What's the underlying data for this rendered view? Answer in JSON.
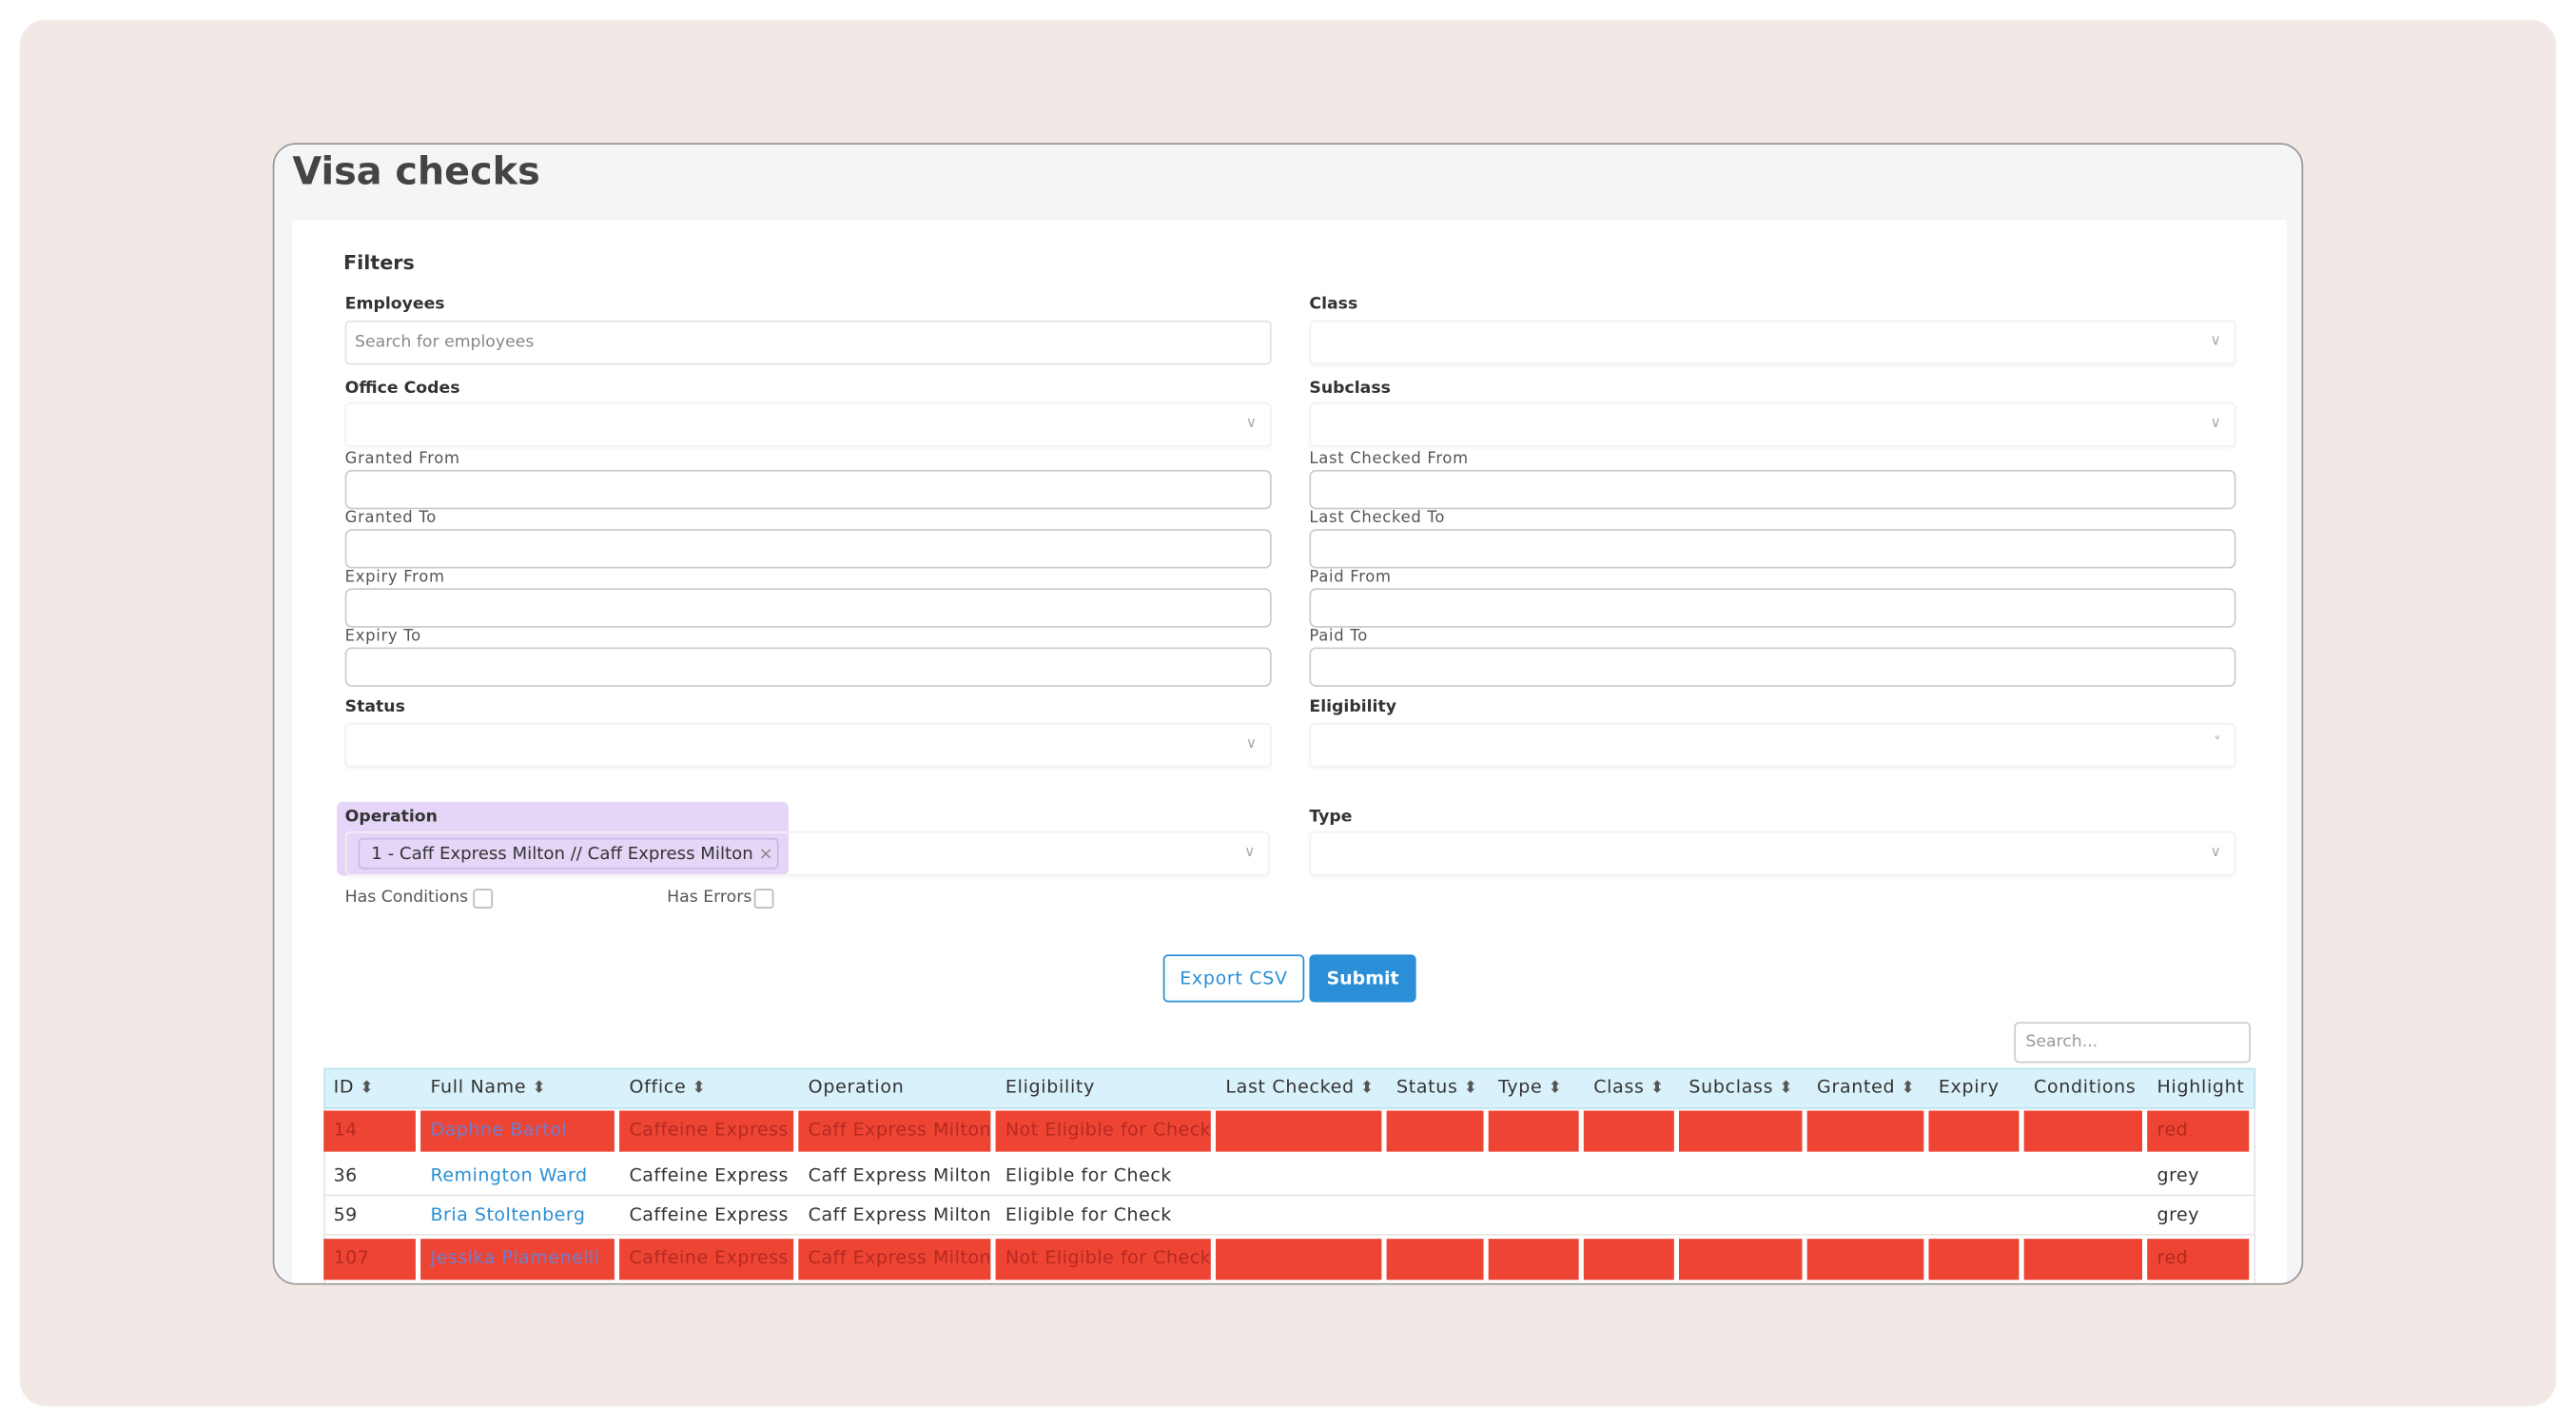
{
  "header": {
    "title": "Visa checks"
  },
  "filters": {
    "title": "Filters",
    "left": [
      {
        "label": "Employees",
        "kind": "search",
        "placeholder": "Search for employees"
      },
      {
        "label": "Office Codes",
        "kind": "select"
      },
      {
        "label": "Granted From",
        "kind": "date"
      },
      {
        "label": "Granted To",
        "kind": "date"
      },
      {
        "label": "Expiry From",
        "kind": "date"
      },
      {
        "label": "Expiry To",
        "kind": "date"
      },
      {
        "label": "Status",
        "kind": "select"
      }
    ],
    "right": [
      {
        "label": "Class",
        "kind": "select"
      },
      {
        "label": "Subclass",
        "kind": "select"
      },
      {
        "label": "Last Checked From",
        "kind": "date"
      },
      {
        "label": "Last Checked To",
        "kind": "date"
      },
      {
        "label": "Paid From",
        "kind": "date"
      },
      {
        "label": "Paid To",
        "kind": "date"
      },
      {
        "label": "Eligibility",
        "kind": "select"
      }
    ],
    "operation": {
      "label": "Operation",
      "chip": "1 - Caff Express Milton // Caff Express Milton"
    },
    "type": {
      "label": "Type"
    },
    "checkboxes": [
      "Has Conditions",
      "Has Errors"
    ]
  },
  "buttons": {
    "export": "Export CSV",
    "submit": "Submit"
  },
  "search": {
    "placeholder": "Search..."
  },
  "table": {
    "columns": [
      {
        "label": "ID",
        "sortable": true
      },
      {
        "label": "Full Name",
        "sortable": true
      },
      {
        "label": "Office",
        "sortable": true
      },
      {
        "label": "Operation",
        "sortable": false
      },
      {
        "label": "Eligibility",
        "sortable": false
      },
      {
        "label": "Last Checked",
        "sortable": true
      },
      {
        "label": "Status",
        "sortable": true
      },
      {
        "label": "Type",
        "sortable": true
      },
      {
        "label": "Class",
        "sortable": true
      },
      {
        "label": "Subclass",
        "sortable": true
      },
      {
        "label": "Granted",
        "sortable": true
      },
      {
        "label": "Expiry",
        "sortable": false
      },
      {
        "label": "Conditions",
        "sortable": false
      },
      {
        "label": "Highlight",
        "sortable": false
      }
    ],
    "rows": [
      [
        "14",
        "Daphne Bartol",
        "Caffeine Express",
        "Caff Express Milton",
        "Not Eligible for Check",
        null,
        null,
        null,
        null,
        null,
        null,
        null,
        null,
        "red"
      ],
      [
        "36",
        "Remington Ward",
        "Caffeine Express",
        "Caff Express Milton",
        "Eligible for Check",
        null,
        null,
        null,
        null,
        null,
        null,
        null,
        null,
        "grey"
      ],
      [
        "59",
        "Bria Stoltenberg",
        "Caffeine Express",
        "Caff Express Milton",
        "Eligible for Check",
        null,
        null,
        null,
        null,
        null,
        null,
        null,
        null,
        "grey"
      ],
      [
        "107",
        "Jessika Plamenelli",
        "Caffeine Express",
        "Caff Express Milton",
        "Not Eligible for Check",
        null,
        null,
        null,
        null,
        null,
        null,
        null,
        null,
        "red"
      ]
    ]
  }
}
